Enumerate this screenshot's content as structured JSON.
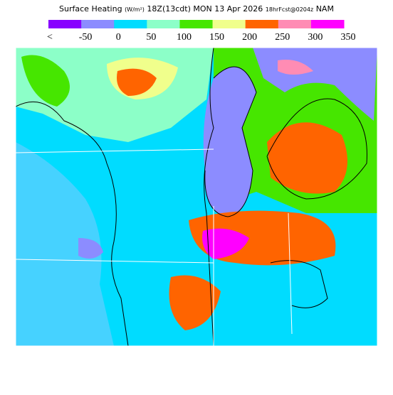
{
  "header": {
    "parts": [
      "Surface Heating",
      "(W/m²)",
      "18Z(13cdt)",
      "MON 13 Apr 2026",
      "18hrFcst@0204z",
      "NAM"
    ]
  },
  "legend": {
    "colors": [
      "#8800ff",
      "#8c8cff",
      "#00dcff",
      "#8cffc8",
      "#46e600",
      "#f0ff8c",
      "#ff6400",
      "#ff8cb4",
      "#ff00ff"
    ],
    "labels": [
      "<",
      "-50",
      "0",
      "50",
      "100",
      "150",
      "200",
      "250",
      "300",
      "350"
    ]
  }
}
